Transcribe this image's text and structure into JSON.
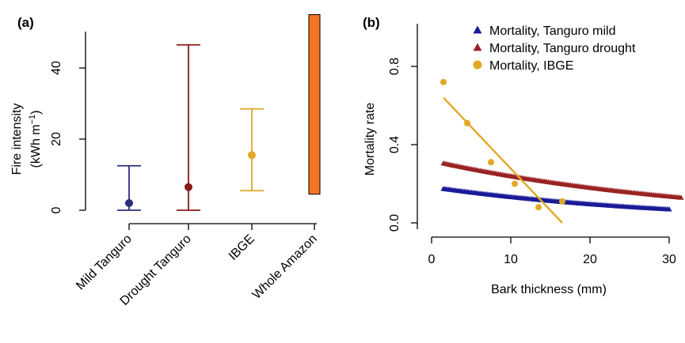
{
  "chart_data": [
    {
      "panel": "(a)",
      "type": "errorbar",
      "ylabel_line1": "Fire intensity",
      "ylabel_line2": "(kWh m",
      "ylabel_sup": "−1",
      "ylabel_close": ")",
      "ylim": [
        0,
        50
      ],
      "yticks": [
        "0",
        "20",
        "40"
      ],
      "categories": [
        "Mild Tanguro",
        "Drought Tanguro",
        "IBGE",
        "Whole Amazon"
      ],
      "points": [
        {
          "category": "Mild Tanguro",
          "mean": 2,
          "low": 0,
          "high": 12.5,
          "color": "#2b2f7a"
        },
        {
          "category": "Drought Tanguro",
          "mean": 6.5,
          "low": 0,
          "high": 46.5,
          "color": "#8b1a1a"
        },
        {
          "category": "IBGE",
          "mean": 15.5,
          "low": 5.5,
          "high": 28.5,
          "color": "#e0a925"
        }
      ],
      "range_bar": {
        "category": "Whole Amazon",
        "low": 4.5,
        "high": 55,
        "color": "#f57424"
      }
    },
    {
      "panel": "(b)",
      "type": "scatter",
      "xlabel": "Bark thickness (mm)",
      "ylabel": "Mortality rate",
      "xlim": [
        0,
        31
      ],
      "ylim": [
        0,
        0.95
      ],
      "xticks": [
        "0",
        "10",
        "20",
        "30"
      ],
      "yticks": [
        "0.0",
        "0.4",
        "0.8"
      ],
      "legend_position": "top-right",
      "series": [
        {
          "name": "Mortality, Tanguro mild",
          "marker": "triangle",
          "color": "#1a1a99",
          "curve": {
            "x_start": 1.5,
            "x_end": 30,
            "y_start": 0.175,
            "y_end": 0.07
          }
        },
        {
          "name": "Mortality, Tanguro drought",
          "marker": "triangle",
          "color": "#9a2323",
          "curve": {
            "x_start": 1.5,
            "x_end": 31.5,
            "y_start": 0.305,
            "y_end": 0.13
          }
        },
        {
          "name": "Mortality, IBGE",
          "marker": "circle",
          "color": "#e0a925",
          "x": [
            1.5,
            4.5,
            7.5,
            10.5,
            13.5,
            16.5
          ],
          "y": [
            0.72,
            0.51,
            0.31,
            0.2,
            0.08,
            0.11
          ],
          "fit": {
            "x_start": 1.5,
            "x_end": 16.5,
            "y_start": 0.64,
            "y_end": 0.0
          }
        }
      ]
    }
  ]
}
